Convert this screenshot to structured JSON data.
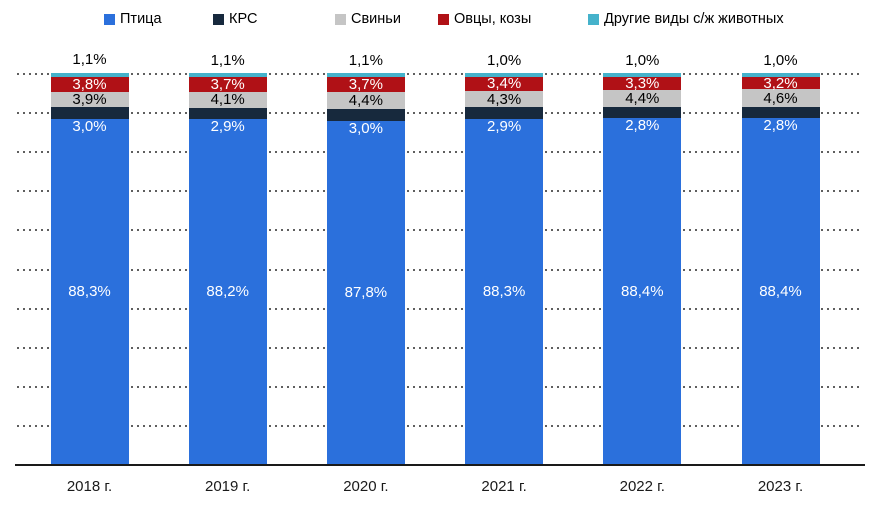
{
  "chart_data": {
    "type": "bar",
    "subtype": "stacked-100-percent",
    "title": "",
    "categories": [
      "2018 г.",
      "2019 г.",
      "2020 г.",
      "2021 г.",
      "2022 г.",
      "2023 г."
    ],
    "series": [
      {
        "name": "Птица",
        "color": "#2b70dc",
        "label_color": "#ffffff",
        "values": [
          88.3,
          88.2,
          87.8,
          88.3,
          88.4,
          88.4
        ]
      },
      {
        "name": "КРС",
        "color": "#17293d",
        "label_color": "#ffffff",
        "values": [
          3.0,
          2.9,
          3.0,
          2.9,
          2.8,
          2.8
        ]
      },
      {
        "name": "Свиньи",
        "color": "#c5c5c5",
        "label_color": "#000000",
        "values": [
          3.9,
          4.1,
          4.4,
          4.3,
          4.4,
          4.6
        ]
      },
      {
        "name": "Овцы, козы",
        "color": "#b01116",
        "label_color": "#ffffff",
        "values": [
          3.8,
          3.7,
          3.7,
          3.4,
          3.3,
          3.2
        ]
      },
      {
        "name": "Другие виды с/ж животных",
        "color": "#45b2cb",
        "label_color": "#000000",
        "values": [
          1.1,
          1.1,
          1.1,
          1.0,
          1.0,
          1.0
        ]
      }
    ],
    "value_label_format": "0,0%",
    "ylim": [
      0,
      100
    ],
    "gridlines": "horizontal dotted every 10%",
    "legend_position": "top"
  }
}
